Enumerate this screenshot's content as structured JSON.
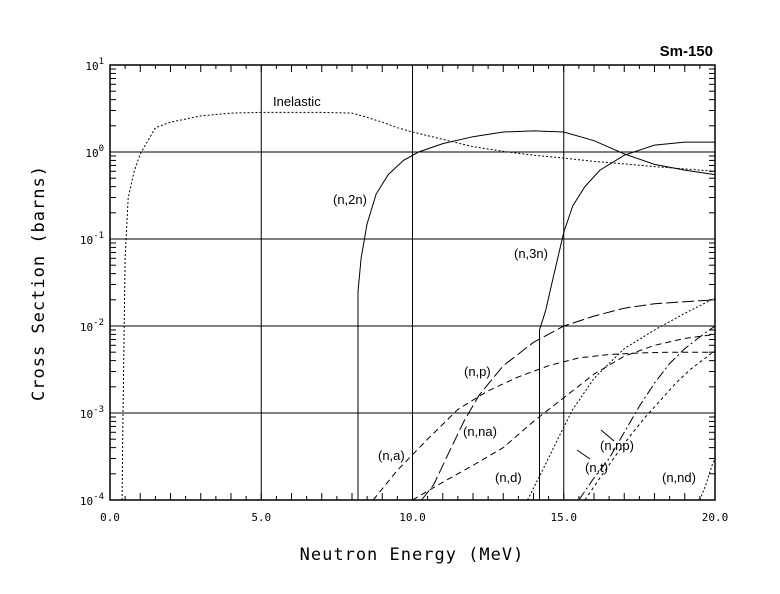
{
  "chart_data": {
    "type": "line",
    "title": "Sm-150",
    "xlabel": "Neutron Energy (MeV)",
    "ylabel": "Cross Section (barns)",
    "xlim": [
      0,
      20
    ],
    "ylim": [
      0.0001,
      10
    ],
    "yscale": "log",
    "grid": true,
    "x_ticks": [
      {
        "value": 0,
        "label": "0.0"
      },
      {
        "value": 5,
        "label": "5.0"
      },
      {
        "value": 10,
        "label": "10.0"
      },
      {
        "value": 15,
        "label": "15.0"
      },
      {
        "value": 20,
        "label": "20.0"
      }
    ],
    "y_ticks": [
      {
        "value": 10,
        "base": "10",
        "exp": "1"
      },
      {
        "value": 1,
        "base": "10",
        "exp": "0"
      },
      {
        "value": 0.1,
        "base": "10",
        "exp": "-1"
      },
      {
        "value": 0.01,
        "base": "10",
        "exp": "-2"
      },
      {
        "value": 0.001,
        "base": "10",
        "exp": "-3"
      },
      {
        "value": 0.0001,
        "base": "10",
        "exp": "-4"
      }
    ],
    "series": [
      {
        "name": "Inelastic",
        "dash": "2,2",
        "x": [
          0.4,
          0.42,
          0.5,
          0.6,
          0.8,
          1.0,
          1.5,
          2.0,
          3.0,
          4.0,
          5.0,
          6.0,
          7.0,
          8.0,
          8.5,
          9.0,
          9.5,
          10.0,
          11.0,
          12.0,
          13.0,
          14.0,
          15.0,
          16.0,
          17.0,
          18.0,
          19.0,
          20.0
        ],
        "y": [
          0.0001,
          0.0005,
          0.06,
          0.3,
          0.6,
          0.95,
          1.9,
          2.2,
          2.6,
          2.8,
          2.85,
          2.85,
          2.85,
          2.8,
          2.5,
          2.2,
          1.9,
          1.7,
          1.4,
          1.15,
          1.02,
          0.92,
          0.85,
          0.78,
          0.73,
          0.68,
          0.64,
          0.6
        ]
      },
      {
        "name": "(n,2n)",
        "dash": "",
        "x": [
          8.2,
          8.2,
          8.3,
          8.5,
          8.8,
          9.2,
          9.7,
          10.2,
          11.0,
          12.0,
          13.0,
          14.0,
          15.0,
          16.0,
          17.0,
          18.0,
          19.0,
          20.0
        ],
        "y": [
          0.0001,
          0.025,
          0.06,
          0.15,
          0.33,
          0.55,
          0.8,
          1.0,
          1.25,
          1.5,
          1.7,
          1.75,
          1.7,
          1.35,
          0.95,
          0.72,
          0.62,
          0.55
        ]
      },
      {
        "name": "(n,3n)",
        "dash": "",
        "x": [
          14.2,
          14.2,
          14.4,
          14.6,
          14.8,
          15.0,
          15.3,
          15.7,
          16.2,
          17.0,
          18.0,
          19.0,
          20.0
        ],
        "y": [
          0.0001,
          0.009,
          0.015,
          0.03,
          0.06,
          0.12,
          0.24,
          0.4,
          0.62,
          0.92,
          1.2,
          1.3,
          1.3
        ]
      },
      {
        "name": "(n,p)",
        "dash": "12,4",
        "x": [
          10.3,
          10.7,
          11.2,
          11.7,
          12.2,
          13.0,
          14.0,
          15.0,
          16.0,
          17.0,
          18.0,
          19.0,
          20.0
        ],
        "y": [
          0.0001,
          0.00015,
          0.00035,
          0.0008,
          0.0016,
          0.0035,
          0.0065,
          0.01,
          0.013,
          0.016,
          0.018,
          0.019,
          0.02
        ]
      },
      {
        "name": "(n,a)",
        "dash": "6,4",
        "x": [
          8.7,
          9.5,
          10.5,
          11.5,
          12.5,
          13.5,
          14.5,
          15.5,
          16.5,
          17.5,
          18.5,
          20.0
        ],
        "y": [
          0.0001,
          0.00022,
          0.0005,
          0.0011,
          0.0018,
          0.0026,
          0.0035,
          0.0043,
          0.0047,
          0.0049,
          0.005,
          0.005
        ]
      },
      {
        "name": "(n,na)",
        "dash": "6,4",
        "x": [
          10.0,
          11.0,
          12.0,
          13.0,
          14.0,
          15.0,
          16.0,
          17.0,
          18.0,
          19.0,
          20.0
        ],
        "y": [
          0.0001,
          0.00016,
          0.00025,
          0.0004,
          0.0008,
          0.0015,
          0.0028,
          0.0045,
          0.006,
          0.0072,
          0.008
        ]
      },
      {
        "name": "(n,d)",
        "dash": "2,2",
        "x": [
          13.8,
          14.3,
          14.8,
          15.3,
          16.0,
          17.0,
          18.0,
          19.0,
          20.0
        ],
        "y": [
          0.0001,
          0.00022,
          0.0005,
          0.0011,
          0.0025,
          0.0055,
          0.009,
          0.014,
          0.021
        ]
      },
      {
        "name": "(n,np)",
        "dash": "10,3,2,3",
        "x": [
          15.5,
          16.0,
          16.5,
          17.0,
          17.5,
          18.0,
          18.5,
          19.0,
          19.5,
          20.0
        ],
        "y": [
          0.0001,
          0.00018,
          0.0003,
          0.0006,
          0.0012,
          0.0022,
          0.0037,
          0.0055,
          0.0075,
          0.01
        ]
      },
      {
        "name": "(n,t)",
        "dash": "3,3",
        "x": [
          15.7,
          16.2,
          16.7,
          17.2,
          17.7,
          18.2,
          18.7,
          19.2,
          20.0
        ],
        "y": [
          0.0001,
          0.00018,
          0.00032,
          0.00055,
          0.0009,
          0.0014,
          0.0022,
          0.0032,
          0.0052
        ]
      },
      {
        "name": "(n,nd)",
        "dash": "2,2",
        "x": [
          19.5,
          19.7,
          19.9,
          20.0
        ],
        "y": [
          0.0001,
          0.00015,
          0.00025,
          0.0003
        ]
      }
    ],
    "annotations": [
      {
        "text": "Inelastic",
        "x": 0.0,
        "y": 0.0
      },
      {
        "text": "(n,2n)"
      },
      {
        "text": "(n,3n)"
      },
      {
        "text": "(n,p)"
      },
      {
        "text": "(n,a)"
      },
      {
        "text": "(n,na)"
      },
      {
        "text": "(n,d)"
      },
      {
        "text": "(n,np)"
      },
      {
        "text": "(n,t)"
      },
      {
        "text": "(n,nd)"
      }
    ]
  }
}
